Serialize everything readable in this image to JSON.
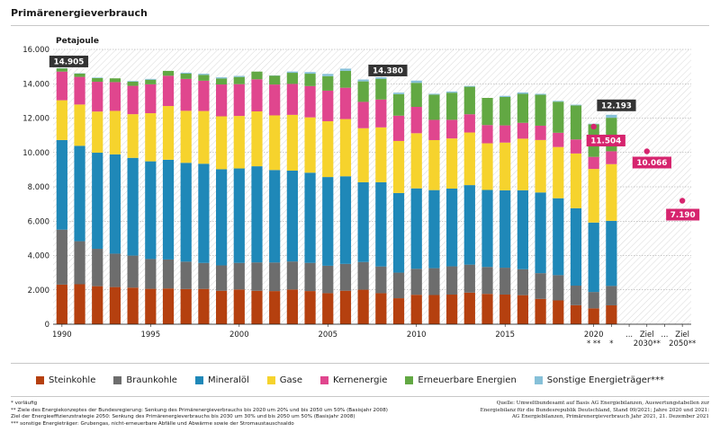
{
  "title": "Primärenergieverbrauch",
  "colors": {
    "steinkohle": "#b5400f",
    "braunkohle": "#6d6d6d",
    "mineraloel": "#1f88b8",
    "gase": "#f6d32d",
    "kernenergie": "#e0468e",
    "erneuerbare": "#62a843",
    "sonstige": "#86c0d8",
    "label_dark": "#333333",
    "label_magenta": "#d6246e"
  },
  "legend": [
    {
      "key": "steinkohle",
      "label": "Steinkohle"
    },
    {
      "key": "braunkohle",
      "label": "Braunkohle"
    },
    {
      "key": "mineraloel",
      "label": "Mineralöl"
    },
    {
      "key": "gase",
      "label": "Gase"
    },
    {
      "key": "kernenergie",
      "label": "Kernenergie"
    },
    {
      "key": "erneuerbare",
      "label": "Erneuerbare Energien"
    },
    {
      "key": "sonstige",
      "label": "Sonstige Energieträger***"
    }
  ],
  "footnotes": [
    "* vorläufig",
    "** Ziele des Energiekonzeptes der Bundesregierung: Senkung des Primärenergieverbrauchs bis 2020 um 20% und bis 2050 um 50% (Basisjahr 2008)",
    "Ziel der Energieeffizienzstrategie 2050: Senkung des Primärenergieverbrauchs bis 2030 um 30% und bis 2050 um 50% (Basisjahr 2008)",
    "*** sonstige Energieträger: Grubengas, nicht-erneuerbare Abfälle und Abwärme sowie der Stromaustauschsaldo"
  ],
  "source": [
    "Quelle: Umweltbundesamt auf Basis AG Energiebilanzen, Auswertungstabellen zur",
    "Energiebilanz für die Bundesrepublik Deutschland, Stand 09/2021; Jahre 2020 und 2021:",
    "AG Energiebilanzen, Primärenergieverbrauch Jahr 2021, 21. Dezember 2021"
  ],
  "chart_data": {
    "type": "bar",
    "stacked": true,
    "ylabel": "Petajoule",
    "ylim": [
      0,
      16000
    ],
    "yticks": [
      "0",
      "2.000",
      "4.000",
      "6.000",
      "8.000",
      "10.000",
      "12.000",
      "14.000",
      "16.000"
    ],
    "categories": [
      "1990",
      "1991",
      "1992",
      "1993",
      "1994",
      "1995",
      "1996",
      "1997",
      "1998",
      "1999",
      "2000",
      "2001",
      "2002",
      "2003",
      "2004",
      "2005",
      "2006",
      "2007",
      "2008",
      "2009",
      "2010",
      "2011",
      "2012",
      "2013",
      "2014",
      "2015",
      "2016",
      "2017",
      "2018",
      "2019",
      "2020",
      "2021",
      "...",
      "Ziel 2030**",
      "...",
      "Ziel 2050**"
    ],
    "xtick_labels": [
      {
        "index": 0,
        "text": "1990"
      },
      {
        "index": 5,
        "text": "1995"
      },
      {
        "index": 10,
        "text": "2000"
      },
      {
        "index": 15,
        "text": "2005"
      },
      {
        "index": 20,
        "text": "2010"
      },
      {
        "index": 25,
        "text": "2015"
      },
      {
        "index": 30,
        "text": "2020",
        "sub": "* **"
      },
      {
        "index": 31,
        "text": "",
        "sub": "*"
      },
      {
        "index": 32,
        "text": "..."
      },
      {
        "index": 33,
        "text": "Ziel",
        "sub": "2030**"
      },
      {
        "index": 34,
        "text": "..."
      },
      {
        "index": 35,
        "text": "Ziel",
        "sub": "2050**"
      }
    ],
    "series": [
      {
        "key": "steinkohle",
        "name": "Steinkohle",
        "values": [
          2306,
          2327,
          2215,
          2164,
          2131,
          2060,
          2080,
          2047,
          2055,
          1950,
          2021,
          1948,
          1929,
          2020,
          1930,
          1808,
          1950,
          2010,
          1807,
          1513,
          1714,
          1699,
          1725,
          1840,
          1766,
          1726,
          1691,
          1474,
          1386,
          1108,
          922,
          1100,
          null,
          null,
          null,
          null
        ]
      },
      {
        "key": "braunkohle",
        "name": "Braunkohle",
        "values": [
          3201,
          2506,
          2175,
          1944,
          1864,
          1735,
          1688,
          1596,
          1513,
          1474,
          1550,
          1650,
          1663,
          1632,
          1642,
          1596,
          1562,
          1613,
          1556,
          1491,
          1512,
          1564,
          1645,
          1629,
          1567,
          1565,
          1511,
          1498,
          1470,
          1140,
          954,
          1130,
          null,
          null,
          null,
          null
        ]
      },
      {
        "key": "mineraloel",
        "name": "Mineralöl",
        "values": [
          5217,
          5553,
          5596,
          5781,
          5691,
          5689,
          5808,
          5754,
          5775,
          5599,
          5499,
          5599,
          5386,
          5290,
          5250,
          5166,
          5102,
          4644,
          4904,
          4635,
          4684,
          4546,
          4526,
          4630,
          4485,
          4505,
          4597,
          4699,
          4479,
          4508,
          4043,
          3790,
          null,
          null,
          null,
          null
        ]
      },
      {
        "key": "gase",
        "name": "Gase",
        "values": [
          2316,
          2405,
          2397,
          2532,
          2543,
          2801,
          3127,
          3028,
          3070,
          3081,
          3056,
          3195,
          3180,
          3248,
          3221,
          3249,
          3329,
          3145,
          3193,
          3031,
          3210,
          2911,
          2920,
          3063,
          2716,
          2779,
          3004,
          3054,
          2983,
          3184,
          3122,
          3300,
          null,
          null,
          null,
          null
        ]
      },
      {
        "key": "kernenergie",
        "name": "Kernenergie",
        "values": [
          1668,
          1609,
          1733,
          1675,
          1650,
          1682,
          1764,
          1858,
          1764,
          1855,
          1851,
          1868,
          1798,
          1801,
          1822,
          1779,
          1826,
          1533,
          1623,
          1472,
          1533,
          1178,
          1085,
          1061,
          1060,
          1001,
          923,
          833,
          829,
          819,
          702,
          750,
          null,
          null,
          null,
          null
        ]
      },
      {
        "key": "erneuerbare",
        "name": "Erneuerbare Energien",
        "values": [
          196,
          188,
          213,
          219,
          241,
          268,
          282,
          306,
          337,
          346,
          418,
          448,
          522,
          647,
          721,
          843,
          983,
          1193,
          1205,
          1254,
          1400,
          1468,
          1578,
          1603,
          1582,
          1655,
          1687,
          1800,
          1809,
          1980,
          1900,
          1950,
          null,
          null,
          null,
          null
        ]
      },
      {
        "key": "sonstige",
        "name": "Sonstige Energieträger***",
        "values": [
          1,
          22,
          31,
          -25,
          40,
          47,
          0,
          56,
          67,
          67,
          61,
          -32,
          7,
          72,
          93,
          131,
          128,
          108,
          92,
          87,
          130,
          50,
          67,
          45,
          0,
          63,
          81,
          54,
          44,
          41,
          30,
          173,
          null,
          null,
          null,
          null
        ]
      }
    ],
    "totals": [
      14905,
      14610,
      14360,
      14290,
      14160,
      14282,
      14849,
      14645,
      14581,
      14372,
      14465,
      14776,
      14485,
      14602,
      14679,
      14572,
      14880,
      14246,
      14380,
      13483,
      14183,
      13416,
      13546,
      13871,
      13176,
      13294,
      13494,
      13412,
      13000,
      12780,
      11673,
      12193,
      null,
      null,
      null,
      null
    ],
    "annotations": [
      {
        "index": 0,
        "value": 14905,
        "text": "14.905",
        "style": "dark"
      },
      {
        "index": 18,
        "value": 14380,
        "text": "14.380",
        "style": "dark"
      },
      {
        "index": 31,
        "value": 12193,
        "text": "12.193",
        "style": "dark"
      },
      {
        "index": 30,
        "value": 11504,
        "text": "11.504",
        "style": "magenta",
        "marker": "dot"
      },
      {
        "index": 33,
        "value": 10066,
        "text": "10.066",
        "style": "magenta",
        "marker": "dot"
      },
      {
        "index": 35,
        "value": 7190,
        "text": "7.190",
        "style": "magenta",
        "marker": "dot"
      }
    ]
  }
}
